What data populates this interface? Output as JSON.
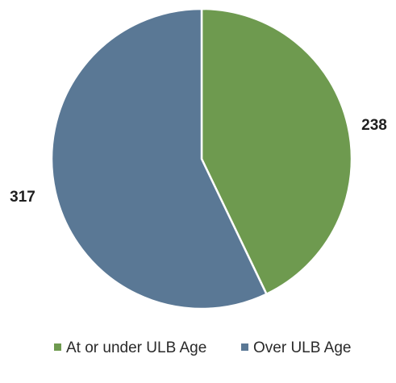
{
  "chart_data": {
    "type": "pie",
    "categories": [
      "At or under ULB Age",
      "Over ULB Age"
    ],
    "values": [
      238,
      317
    ],
    "colors": [
      "#6e9a4f",
      "#5a7895"
    ],
    "data_labels": [
      "238",
      "317"
    ],
    "legend": {
      "position": "bottom",
      "entries": [
        "At or under ULB Age",
        "Over ULB Age"
      ]
    },
    "start_angle_deg": 0,
    "direction": "clockwise",
    "title": ""
  }
}
